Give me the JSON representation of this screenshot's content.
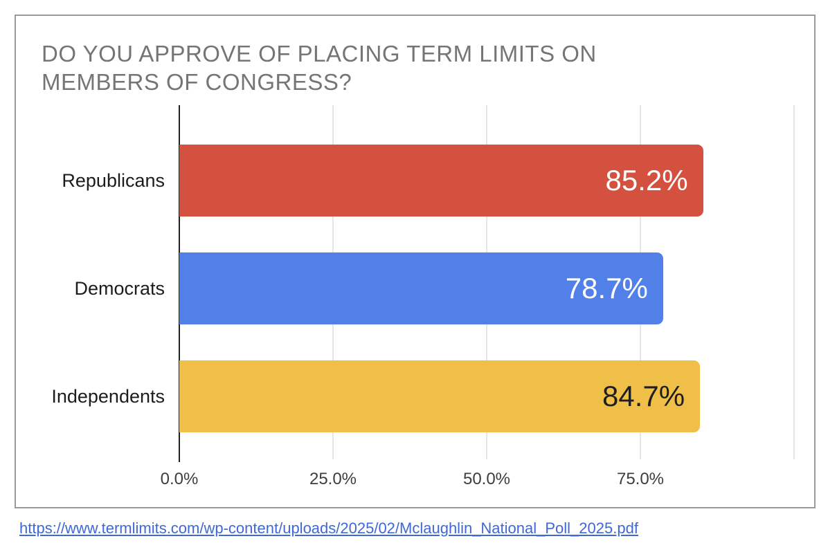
{
  "chart_data": {
    "type": "bar",
    "orientation": "horizontal",
    "title": "DO YOU APPROVE OF PLACING TERM LIMITS ON MEMBERS OF CONGRESS?",
    "title_lines": [
      "DO YOU APPROVE OF PLACING TERM LIMITS ON",
      "MEMBERS OF CONGRESS?"
    ],
    "categories": [
      "Republicans",
      "Democrats",
      "Independents"
    ],
    "values": [
      85.2,
      78.7,
      84.7
    ],
    "value_labels": [
      "85.2%",
      "78.7%",
      "84.7%"
    ],
    "bar_colors": [
      "#d5513f",
      "#5181e8",
      "#f0bf47"
    ],
    "value_label_colors": [
      "#ffffff",
      "#ffffff",
      "#1f1f1f"
    ],
    "xlim": [
      0,
      100
    ],
    "x_ticks": [
      {
        "value": 0,
        "label": "0.0%"
      },
      {
        "value": 25,
        "label": "25.0%"
      },
      {
        "value": 50,
        "label": "50.0%"
      },
      {
        "value": 75,
        "label": "75.0%"
      },
      {
        "value": 100,
        "label": ""
      }
    ],
    "grid": true,
    "legend": "none"
  },
  "colors": {
    "title_text": "#757575",
    "axis_line": "#212121",
    "gridline": "#e6e6e6",
    "frame_border": "#9a9a9a",
    "link": "#3e68d8"
  },
  "source": {
    "url_text": "https://www.termlimits.com/wp-content/uploads/2025/02/Mclaughlin_National_Poll_2025.pdf"
  }
}
